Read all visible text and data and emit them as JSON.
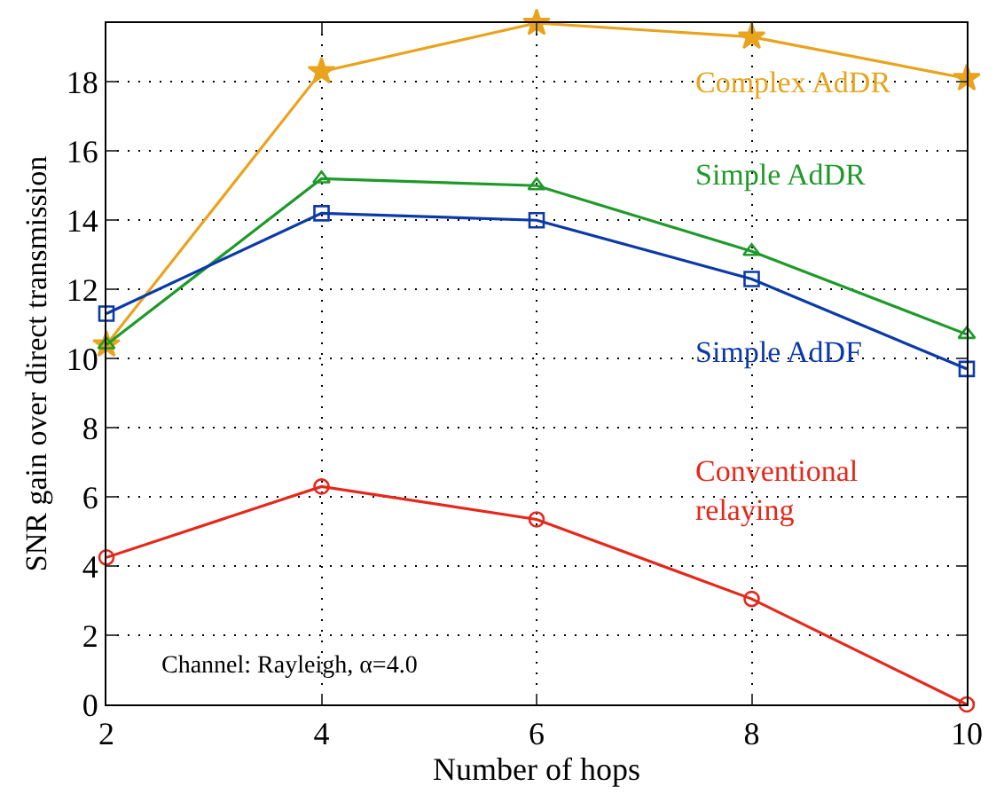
{
  "chart_data": {
    "type": "line",
    "xlabel": "Number of hops",
    "ylabel": "SNR gain over direct transmission",
    "x": [
      2,
      4,
      6,
      8,
      10
    ],
    "series": [
      {
        "name": "Complex AdDR",
        "color": "#e9a31c",
        "marker": "star",
        "values": [
          10.4,
          18.3,
          19.7,
          19.3,
          18.1
        ]
      },
      {
        "name": "Simple AdDR",
        "color": "#1f9a2a",
        "marker": "triangle",
        "values": [
          10.4,
          15.2,
          15.0,
          13.1,
          10.7
        ]
      },
      {
        "name": "Simple AdDF",
        "color": "#0b3aa8",
        "marker": "square",
        "values": [
          11.3,
          14.2,
          14.0,
          12.3,
          9.7
        ]
      },
      {
        "name": "Conventional\nrelaying",
        "color": "#e5281b",
        "marker": "circle",
        "values": [
          4.25,
          6.3,
          5.35,
          3.05,
          0
        ]
      }
    ],
    "xlim": [
      2,
      10
    ],
    "xticks": [
      2,
      4,
      6,
      8,
      10
    ],
    "ylim": [
      0,
      19.7
    ],
    "yticks": [
      0,
      2,
      4,
      6,
      8,
      10,
      12,
      14,
      16,
      18
    ],
    "grid": true,
    "legend": false,
    "line_style": "solid",
    "annotations": [
      "Channel: Rayleigh, α=4.0"
    ]
  }
}
